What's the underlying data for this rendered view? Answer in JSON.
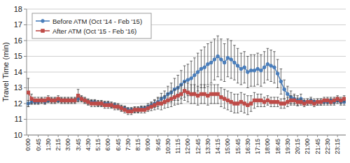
{
  "chart_data": {
    "type": "line",
    "y_label": "Travel Time (min)",
    "categories": [
      "0:00",
      null,
      null,
      "0:45",
      null,
      null,
      "1:30",
      null,
      null,
      "2:15",
      null,
      null,
      "3:00",
      null,
      null,
      "3:45",
      null,
      null,
      "4:30",
      null,
      null,
      "5:15",
      null,
      null,
      "6:00",
      null,
      null,
      "6:45",
      null,
      null,
      "7:30",
      null,
      null,
      "8:15",
      null,
      null,
      "9:00",
      null,
      null,
      "9:45",
      null,
      null,
      "10:30",
      null,
      null,
      "11:15",
      null,
      null,
      "12:00",
      null,
      null,
      "12:45",
      null,
      null,
      "13:30",
      null,
      null,
      "14:15",
      null,
      null,
      "15:00",
      null,
      null,
      "15:45",
      null,
      null,
      "16:30",
      null,
      null,
      "17:15",
      null,
      null,
      "18:00",
      null,
      null,
      "18:45",
      null,
      null,
      "19:30",
      null,
      null,
      "20:15",
      null,
      null,
      "21:00",
      null,
      null,
      "21:45",
      null,
      null,
      "22:30",
      null,
      null,
      "23:15",
      null,
      null
    ],
    "series": [
      {
        "name": "Before ATM (Oct '14 - Feb '15)",
        "color": "#4a7ebb",
        "marker": "circle",
        "values": [
          12.0,
          12.1,
          12.1,
          12.1,
          12.2,
          12.1,
          12.2,
          12.2,
          12.2,
          12.2,
          12.2,
          12.2,
          12.2,
          12.2,
          12.2,
          12.3,
          12.3,
          12.2,
          12.1,
          12.1,
          12.1,
          12.0,
          12.0,
          12.0,
          12.0,
          11.9,
          11.9,
          11.8,
          11.7,
          11.7,
          11.6,
          11.6,
          11.6,
          11.6,
          11.7,
          11.7,
          11.8,
          11.9,
          12.0,
          12.1,
          12.3,
          12.4,
          12.6,
          12.7,
          12.9,
          13.0,
          13.2,
          13.4,
          13.5,
          13.6,
          13.8,
          14.0,
          14.2,
          14.3,
          14.5,
          14.6,
          14.8,
          15.0,
          14.8,
          14.6,
          14.9,
          14.8,
          14.6,
          14.4,
          14.2,
          14.3,
          14.0,
          14.1,
          14.1,
          14.2,
          14.1,
          14.3,
          14.5,
          14.4,
          14.3,
          13.9,
          13.4,
          12.9,
          12.6,
          12.4,
          12.3,
          12.2,
          12.3,
          12.1,
          12.1,
          12.2,
          12.1,
          12.1,
          12.1,
          12.1,
          12.1,
          12.2,
          12.1,
          12.2,
          12.1,
          12.1
        ],
        "errors": [
          0.2,
          0.15,
          0.15,
          0.15,
          0.15,
          0.15,
          0.15,
          0.15,
          0.15,
          0.15,
          0.15,
          0.15,
          0.15,
          0.15,
          0.15,
          0.15,
          0.15,
          0.15,
          0.15,
          0.15,
          0.15,
          0.15,
          0.15,
          0.15,
          0.15,
          0.15,
          0.15,
          0.15,
          0.15,
          0.15,
          0.15,
          0.15,
          0.15,
          0.15,
          0.15,
          0.15,
          0.2,
          0.2,
          0.25,
          0.3,
          0.35,
          0.4,
          0.5,
          0.6,
          0.7,
          0.8,
          0.9,
          1.0,
          1.0,
          1.1,
          1.1,
          1.2,
          1.2,
          1.3,
          1.3,
          1.3,
          1.3,
          1.3,
          1.3,
          1.2,
          1.2,
          1.2,
          1.1,
          1.1,
          1.0,
          1.0,
          1.0,
          1.0,
          1.0,
          1.0,
          1.0,
          1.0,
          1.0,
          1.0,
          1.0,
          0.9,
          0.8,
          0.6,
          0.5,
          0.4,
          0.3,
          0.3,
          0.3,
          0.2,
          0.2,
          0.2,
          0.2,
          0.2,
          0.2,
          0.2,
          0.2,
          0.2,
          0.2,
          0.2,
          0.2,
          0.2
        ]
      },
      {
        "name": "After ATM (Oct '15 - Feb '16)",
        "color": "#be4b48",
        "marker": "square",
        "values": [
          12.7,
          12.3,
          12.2,
          12.2,
          12.2,
          12.2,
          12.3,
          12.2,
          12.2,
          12.3,
          12.2,
          12.2,
          12.2,
          12.2,
          12.2,
          12.5,
          12.3,
          12.2,
          12.1,
          12.0,
          12.0,
          12.0,
          12.0,
          11.9,
          11.9,
          11.9,
          11.8,
          11.8,
          11.7,
          11.6,
          11.5,
          11.5,
          11.6,
          11.6,
          11.6,
          11.6,
          11.7,
          11.8,
          11.9,
          12.0,
          12.0,
          12.1,
          12.2,
          12.3,
          12.4,
          12.5,
          12.6,
          12.8,
          12.7,
          12.6,
          12.6,
          12.5,
          12.6,
          12.6,
          12.5,
          12.6,
          12.6,
          12.6,
          12.4,
          12.3,
          12.2,
          12.1,
          12.0,
          12.0,
          12.1,
          12.0,
          11.9,
          12.0,
          12.2,
          12.2,
          12.2,
          12.1,
          12.2,
          12.1,
          12.1,
          12.1,
          12.0,
          12.0,
          12.1,
          12.2,
          12.2,
          12.1,
          12.1,
          12.0,
          12.1,
          12.1,
          12.0,
          12.1,
          12.1,
          12.2,
          12.2,
          12.1,
          12.2,
          12.3,
          12.2,
          12.3
        ],
        "errors": [
          0.9,
          0.3,
          0.2,
          0.2,
          0.2,
          0.2,
          0.2,
          0.2,
          0.2,
          0.2,
          0.2,
          0.2,
          0.2,
          0.2,
          0.2,
          0.4,
          0.2,
          0.2,
          0.2,
          0.2,
          0.2,
          0.2,
          0.2,
          0.2,
          0.2,
          0.2,
          0.2,
          0.2,
          0.2,
          0.2,
          0.2,
          0.2,
          0.2,
          0.2,
          0.2,
          0.2,
          0.2,
          0.25,
          0.3,
          0.35,
          0.4,
          0.4,
          0.45,
          0.5,
          0.5,
          0.55,
          0.6,
          0.6,
          0.6,
          0.6,
          0.6,
          0.6,
          0.6,
          0.6,
          0.6,
          0.6,
          0.6,
          0.6,
          0.6,
          0.6,
          0.6,
          0.6,
          0.6,
          0.6,
          0.6,
          0.6,
          0.6,
          0.5,
          0.5,
          0.4,
          0.4,
          0.3,
          0.3,
          0.3,
          0.3,
          0.3,
          0.3,
          0.3,
          0.3,
          0.3,
          0.3,
          0.25,
          0.2,
          0.2,
          0.2,
          0.2,
          0.2,
          0.2,
          0.2,
          0.2,
          0.2,
          0.2,
          0.2,
          0.2,
          0.2,
          0.2
        ]
      }
    ],
    "ylim": [
      10,
      18
    ],
    "yticks": [
      10,
      11,
      12,
      13,
      14,
      15,
      16,
      17,
      18
    ],
    "grid": true,
    "legend": "upper left"
  }
}
